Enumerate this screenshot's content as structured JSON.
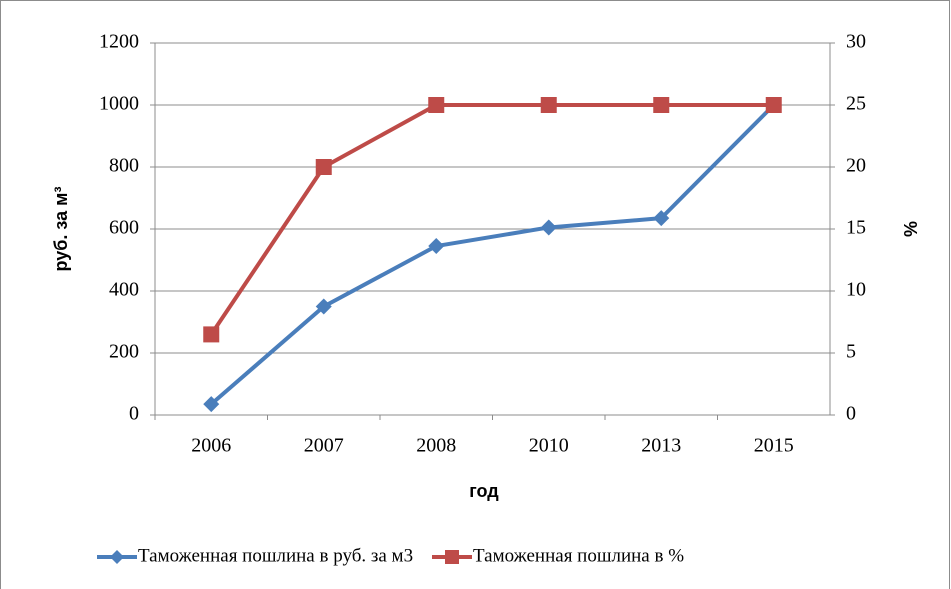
{
  "chart_data": {
    "type": "line",
    "categories": [
      "2006",
      "2007",
      "2008",
      "2010",
      "2013",
      "2015"
    ],
    "series": [
      {
        "name": "Таможенная пошлина в руб. за м3",
        "color": "#4a7ebb",
        "values": [
          35,
          350,
          545,
          605,
          635,
          1000
        ]
      },
      {
        "name": "Таможенная пошлина в %",
        "color": "#be4b48",
        "axis": "y2",
        "values": [
          6.5,
          20,
          25,
          25,
          25,
          25
        ]
      }
    ],
    "ylabel": "руб. за м³",
    "y2label": "%",
    "xlabel": "год",
    "ylim": [
      0,
      1200
    ],
    "yticks": [
      0,
      200,
      400,
      600,
      800,
      1000,
      1200
    ],
    "y2lim": [
      0,
      30
    ],
    "y2ticks": [
      0,
      5,
      10,
      15,
      20,
      25,
      30
    ],
    "grid": true,
    "legend": "bottom"
  }
}
